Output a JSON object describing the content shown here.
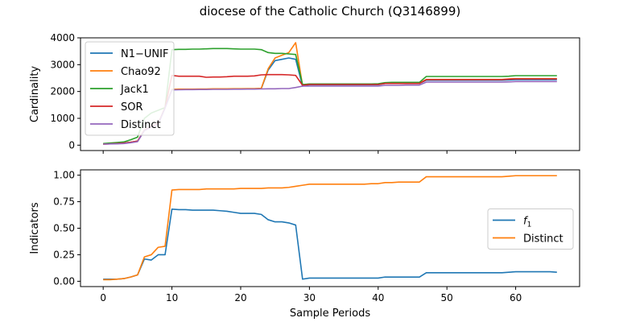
{
  "figure": {
    "title": "diocese of the Catholic Church (Q3146899)"
  },
  "chart_data": [
    {
      "type": "line",
      "ylabel": "Cardinality",
      "xlabel": "",
      "xlim": [
        -3.3,
        69.3
      ],
      "ylim": [
        -200,
        4000
      ],
      "xticks": [
        0,
        10,
        20,
        30,
        40,
        50,
        60
      ],
      "yticks": [
        0,
        1000,
        2000,
        3000,
        4000
      ],
      "xtick_labels_shown": false,
      "legend": {
        "position": "upper-left"
      },
      "series": [
        {
          "name": "N1−UNIF",
          "color": "#1f77b4",
          "x": [
            0,
            1,
            2,
            3,
            4,
            5,
            6,
            7,
            8,
            9,
            10,
            11,
            12,
            13,
            14,
            15,
            16,
            17,
            18,
            19,
            20,
            21,
            22,
            23,
            24,
            25,
            26,
            27,
            28,
            29,
            30,
            31,
            32,
            33,
            34,
            35,
            36,
            37,
            38,
            39,
            40,
            41,
            42,
            43,
            44,
            45,
            46,
            47,
            48,
            49,
            50,
            51,
            52,
            53,
            54,
            55,
            56,
            57,
            58,
            59,
            60,
            61,
            62,
            63,
            64,
            65,
            66
          ],
          "y": [
            40,
            50,
            60,
            80,
            110,
            150,
            560,
            700,
            800,
            1400,
            2070,
            2080,
            2080,
            2080,
            2085,
            2085,
            2090,
            2090,
            2090,
            2095,
            2095,
            2100,
            2100,
            2110,
            2800,
            3150,
            3200,
            3250,
            3200,
            2200,
            2250,
            2250,
            2250,
            2250,
            2250,
            2250,
            2250,
            2250,
            2250,
            2250,
            2250,
            2300,
            2300,
            2300,
            2300,
            2300,
            2300,
            2420,
            2420,
            2420,
            2420,
            2420,
            2420,
            2420,
            2420,
            2420,
            2420,
            2420,
            2420,
            2430,
            2440,
            2440,
            2440,
            2440,
            2440,
            2440,
            2440
          ]
        },
        {
          "name": "Chao92",
          "color": "#ff7f0e",
          "x": [
            0,
            1,
            2,
            3,
            4,
            5,
            6,
            7,
            8,
            9,
            10,
            11,
            12,
            13,
            14,
            15,
            16,
            17,
            18,
            19,
            20,
            21,
            22,
            23,
            24,
            25,
            26,
            27,
            28,
            29,
            30,
            31,
            32,
            33,
            34,
            35,
            36,
            37,
            38,
            39,
            40,
            41,
            42,
            43,
            44,
            45,
            46,
            47,
            48,
            49,
            50,
            51,
            52,
            53,
            54,
            55,
            56,
            57,
            58,
            59,
            60,
            61,
            62,
            63,
            64,
            65,
            66
          ],
          "y": [
            40,
            50,
            60,
            80,
            110,
            150,
            560,
            700,
            800,
            1400,
            2080,
            2090,
            2090,
            2090,
            2095,
            2095,
            2100,
            2100,
            2100,
            2105,
            2105,
            2110,
            2110,
            2120,
            2850,
            3250,
            3350,
            3450,
            3820,
            2220,
            2270,
            2270,
            2270,
            2270,
            2270,
            2270,
            2270,
            2270,
            2270,
            2270,
            2270,
            2310,
            2310,
            2310,
            2310,
            2310,
            2310,
            2450,
            2450,
            2450,
            2450,
            2450,
            2450,
            2450,
            2450,
            2450,
            2450,
            2450,
            2450,
            2470,
            2480,
            2480,
            2480,
            2480,
            2480,
            2480,
            2480
          ]
        },
        {
          "name": "Jack1",
          "color": "#2ca02c",
          "x": [
            0,
            1,
            2,
            3,
            4,
            5,
            6,
            7,
            8,
            9,
            10,
            11,
            12,
            13,
            14,
            15,
            16,
            17,
            18,
            19,
            20,
            21,
            22,
            23,
            24,
            25,
            26,
            27,
            28,
            29,
            30,
            31,
            32,
            33,
            34,
            35,
            36,
            37,
            38,
            39,
            40,
            41,
            42,
            43,
            44,
            45,
            46,
            47,
            48,
            49,
            50,
            51,
            52,
            53,
            54,
            55,
            56,
            57,
            58,
            59,
            60,
            61,
            62,
            63,
            64,
            65,
            66
          ],
          "y": [
            60,
            80,
            100,
            120,
            200,
            300,
            1000,
            1200,
            1300,
            1400,
            3560,
            3570,
            3570,
            3580,
            3580,
            3590,
            3600,
            3600,
            3600,
            3590,
            3580,
            3580,
            3580,
            3560,
            3450,
            3420,
            3420,
            3400,
            3380,
            2260,
            2280,
            2280,
            2280,
            2280,
            2280,
            2280,
            2280,
            2280,
            2280,
            2280,
            2290,
            2330,
            2340,
            2340,
            2340,
            2340,
            2340,
            2560,
            2560,
            2560,
            2560,
            2560,
            2560,
            2560,
            2560,
            2560,
            2560,
            2560,
            2560,
            2570,
            2590,
            2590,
            2590,
            2590,
            2590,
            2590,
            2590
          ]
        },
        {
          "name": "SOR",
          "color": "#d62728",
          "x": [
            0,
            1,
            2,
            3,
            4,
            5,
            6,
            7,
            8,
            9,
            10,
            11,
            12,
            13,
            14,
            15,
            16,
            17,
            18,
            19,
            20,
            21,
            22,
            23,
            24,
            25,
            26,
            27,
            28,
            29,
            30,
            31,
            32,
            33,
            34,
            35,
            36,
            37,
            38,
            39,
            40,
            41,
            42,
            43,
            44,
            45,
            46,
            47,
            48,
            49,
            50,
            51,
            52,
            53,
            54,
            55,
            56,
            57,
            58,
            59,
            60,
            61,
            62,
            63,
            64,
            65,
            66
          ],
          "y": [
            40,
            50,
            60,
            80,
            110,
            150,
            560,
            700,
            800,
            1400,
            2600,
            2570,
            2570,
            2570,
            2570,
            2530,
            2540,
            2540,
            2550,
            2570,
            2570,
            2570,
            2580,
            2620,
            2630,
            2630,
            2630,
            2620,
            2600,
            2230,
            2260,
            2260,
            2260,
            2260,
            2260,
            2260,
            2260,
            2260,
            2260,
            2260,
            2260,
            2300,
            2300,
            2300,
            2300,
            2300,
            2300,
            2440,
            2440,
            2440,
            2440,
            2440,
            2440,
            2440,
            2440,
            2440,
            2440,
            2440,
            2440,
            2460,
            2470,
            2470,
            2470,
            2470,
            2470,
            2470,
            2470
          ]
        },
        {
          "name": "Distinct",
          "color": "#9467bd",
          "x": [
            0,
            1,
            2,
            3,
            4,
            5,
            6,
            7,
            8,
            9,
            10,
            11,
            12,
            13,
            14,
            15,
            16,
            17,
            18,
            19,
            20,
            21,
            22,
            23,
            24,
            25,
            26,
            27,
            28,
            29,
            30,
            31,
            32,
            33,
            34,
            35,
            36,
            37,
            38,
            39,
            40,
            41,
            42,
            43,
            44,
            45,
            46,
            47,
            48,
            49,
            50,
            51,
            52,
            53,
            54,
            55,
            56,
            57,
            58,
            59,
            60,
            61,
            62,
            63,
            64,
            65,
            66
          ],
          "y": [
            40,
            45,
            50,
            60,
            90,
            130,
            540,
            680,
            780,
            1380,
            2060,
            2065,
            2070,
            2070,
            2075,
            2075,
            2080,
            2080,
            2080,
            2085,
            2085,
            2090,
            2090,
            2095,
            2100,
            2100,
            2110,
            2110,
            2150,
            2200,
            2200,
            2200,
            2200,
            2200,
            2200,
            2200,
            2200,
            2200,
            2200,
            2200,
            2200,
            2230,
            2230,
            2230,
            2240,
            2240,
            2240,
            2350,
            2350,
            2350,
            2350,
            2350,
            2350,
            2350,
            2350,
            2350,
            2350,
            2350,
            2350,
            2360,
            2370,
            2370,
            2370,
            2370,
            2370,
            2370,
            2370
          ]
        }
      ]
    },
    {
      "type": "line",
      "ylabel": "Indicators",
      "xlabel": "Sample Periods",
      "xlim": [
        -3.3,
        69.3
      ],
      "ylim": [
        -0.05,
        1.05
      ],
      "xticks": [
        0,
        10,
        20,
        30,
        40,
        50,
        60
      ],
      "yticks": [
        0.0,
        0.25,
        0.5,
        0.75,
        1.0
      ],
      "ytick_labels": [
        "0.00",
        "0.25",
        "0.50",
        "0.75",
        "1.00"
      ],
      "xtick_labels": [
        "0",
        "10",
        "20",
        "30",
        "40",
        "50",
        "60"
      ],
      "legend": {
        "position": "center-right"
      },
      "series": [
        {
          "name": "f1",
          "color": "#1f77b4",
          "x": [
            0,
            1,
            2,
            3,
            4,
            5,
            6,
            7,
            8,
            9,
            10,
            11,
            12,
            13,
            14,
            15,
            16,
            17,
            18,
            19,
            20,
            21,
            22,
            23,
            24,
            25,
            26,
            27,
            28,
            29,
            30,
            31,
            32,
            33,
            34,
            35,
            36,
            37,
            38,
            39,
            40,
            41,
            42,
            43,
            44,
            45,
            46,
            47,
            48,
            49,
            50,
            51,
            52,
            53,
            54,
            55,
            56,
            57,
            58,
            59,
            60,
            61,
            62,
            63,
            64,
            65,
            66
          ],
          "y": [
            0.02,
            0.02,
            0.02,
            0.025,
            0.04,
            0.06,
            0.21,
            0.2,
            0.25,
            0.25,
            0.68,
            0.675,
            0.675,
            0.67,
            0.67,
            0.67,
            0.67,
            0.665,
            0.66,
            0.65,
            0.64,
            0.64,
            0.64,
            0.63,
            0.58,
            0.56,
            0.56,
            0.55,
            0.53,
            0.02,
            0.03,
            0.03,
            0.03,
            0.03,
            0.03,
            0.03,
            0.03,
            0.03,
            0.03,
            0.03,
            0.03,
            0.04,
            0.04,
            0.04,
            0.04,
            0.04,
            0.04,
            0.08,
            0.08,
            0.08,
            0.08,
            0.08,
            0.08,
            0.08,
            0.08,
            0.08,
            0.08,
            0.08,
            0.08,
            0.085,
            0.09,
            0.09,
            0.09,
            0.09,
            0.09,
            0.09,
            0.085
          ]
        },
        {
          "name": "Distinct",
          "color": "#ff7f0e",
          "x": [
            0,
            1,
            2,
            3,
            4,
            5,
            6,
            7,
            8,
            9,
            10,
            11,
            12,
            13,
            14,
            15,
            16,
            17,
            18,
            19,
            20,
            21,
            22,
            23,
            24,
            25,
            26,
            27,
            28,
            29,
            30,
            31,
            32,
            33,
            34,
            35,
            36,
            37,
            38,
            39,
            40,
            41,
            42,
            43,
            44,
            45,
            46,
            47,
            48,
            49,
            50,
            51,
            52,
            53,
            54,
            55,
            56,
            57,
            58,
            59,
            60,
            61,
            62,
            63,
            64,
            65,
            66
          ],
          "y": [
            0.015,
            0.015,
            0.02,
            0.025,
            0.04,
            0.06,
            0.23,
            0.25,
            0.32,
            0.33,
            0.86,
            0.865,
            0.865,
            0.865,
            0.865,
            0.87,
            0.87,
            0.87,
            0.87,
            0.87,
            0.875,
            0.875,
            0.875,
            0.875,
            0.88,
            0.88,
            0.88,
            0.885,
            0.895,
            0.905,
            0.915,
            0.915,
            0.915,
            0.915,
            0.915,
            0.915,
            0.915,
            0.915,
            0.915,
            0.92,
            0.92,
            0.93,
            0.93,
            0.935,
            0.935,
            0.935,
            0.935,
            0.985,
            0.985,
            0.985,
            0.985,
            0.985,
            0.985,
            0.985,
            0.985,
            0.985,
            0.985,
            0.985,
            0.985,
            0.99,
            0.995,
            0.995,
            0.995,
            0.995,
            0.995,
            0.995,
            0.995
          ]
        }
      ]
    }
  ]
}
